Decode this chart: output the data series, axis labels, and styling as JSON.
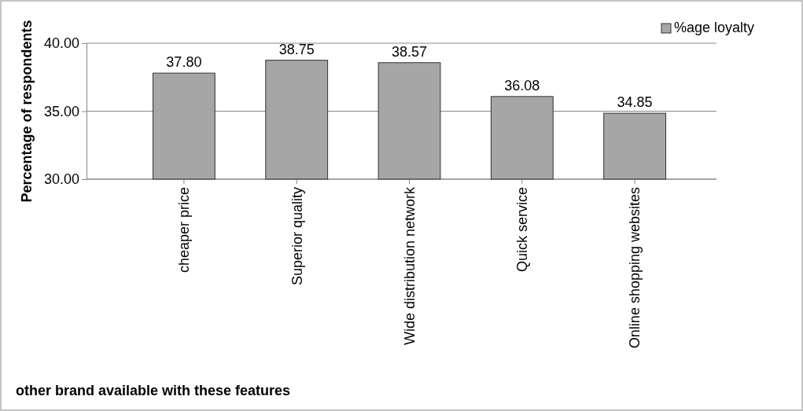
{
  "chart_data": {
    "type": "bar",
    "xlabel": "other brand available with these features",
    "ylabel": "Percentage of respondents",
    "categories": [
      "cheaper price",
      "Superior quality",
      "Wide distribution network",
      "Quick service",
      "Online shopping websites"
    ],
    "series": [
      {
        "name": "%age loyalty",
        "color": "#a6a6a6",
        "values": [
          37.8,
          38.75,
          38.57,
          36.08,
          34.85
        ]
      }
    ],
    "value_labels": [
      "37.80",
      "38.75",
      "38.57",
      "36.08",
      "34.85"
    ],
    "ylim": [
      30,
      40
    ],
    "yticks": [
      {
        "value": 30,
        "label": "30.00"
      },
      {
        "value": 35,
        "label": "35.00"
      },
      {
        "value": 40,
        "label": "40.00"
      }
    ],
    "grid": "y",
    "legend": "top right"
  }
}
